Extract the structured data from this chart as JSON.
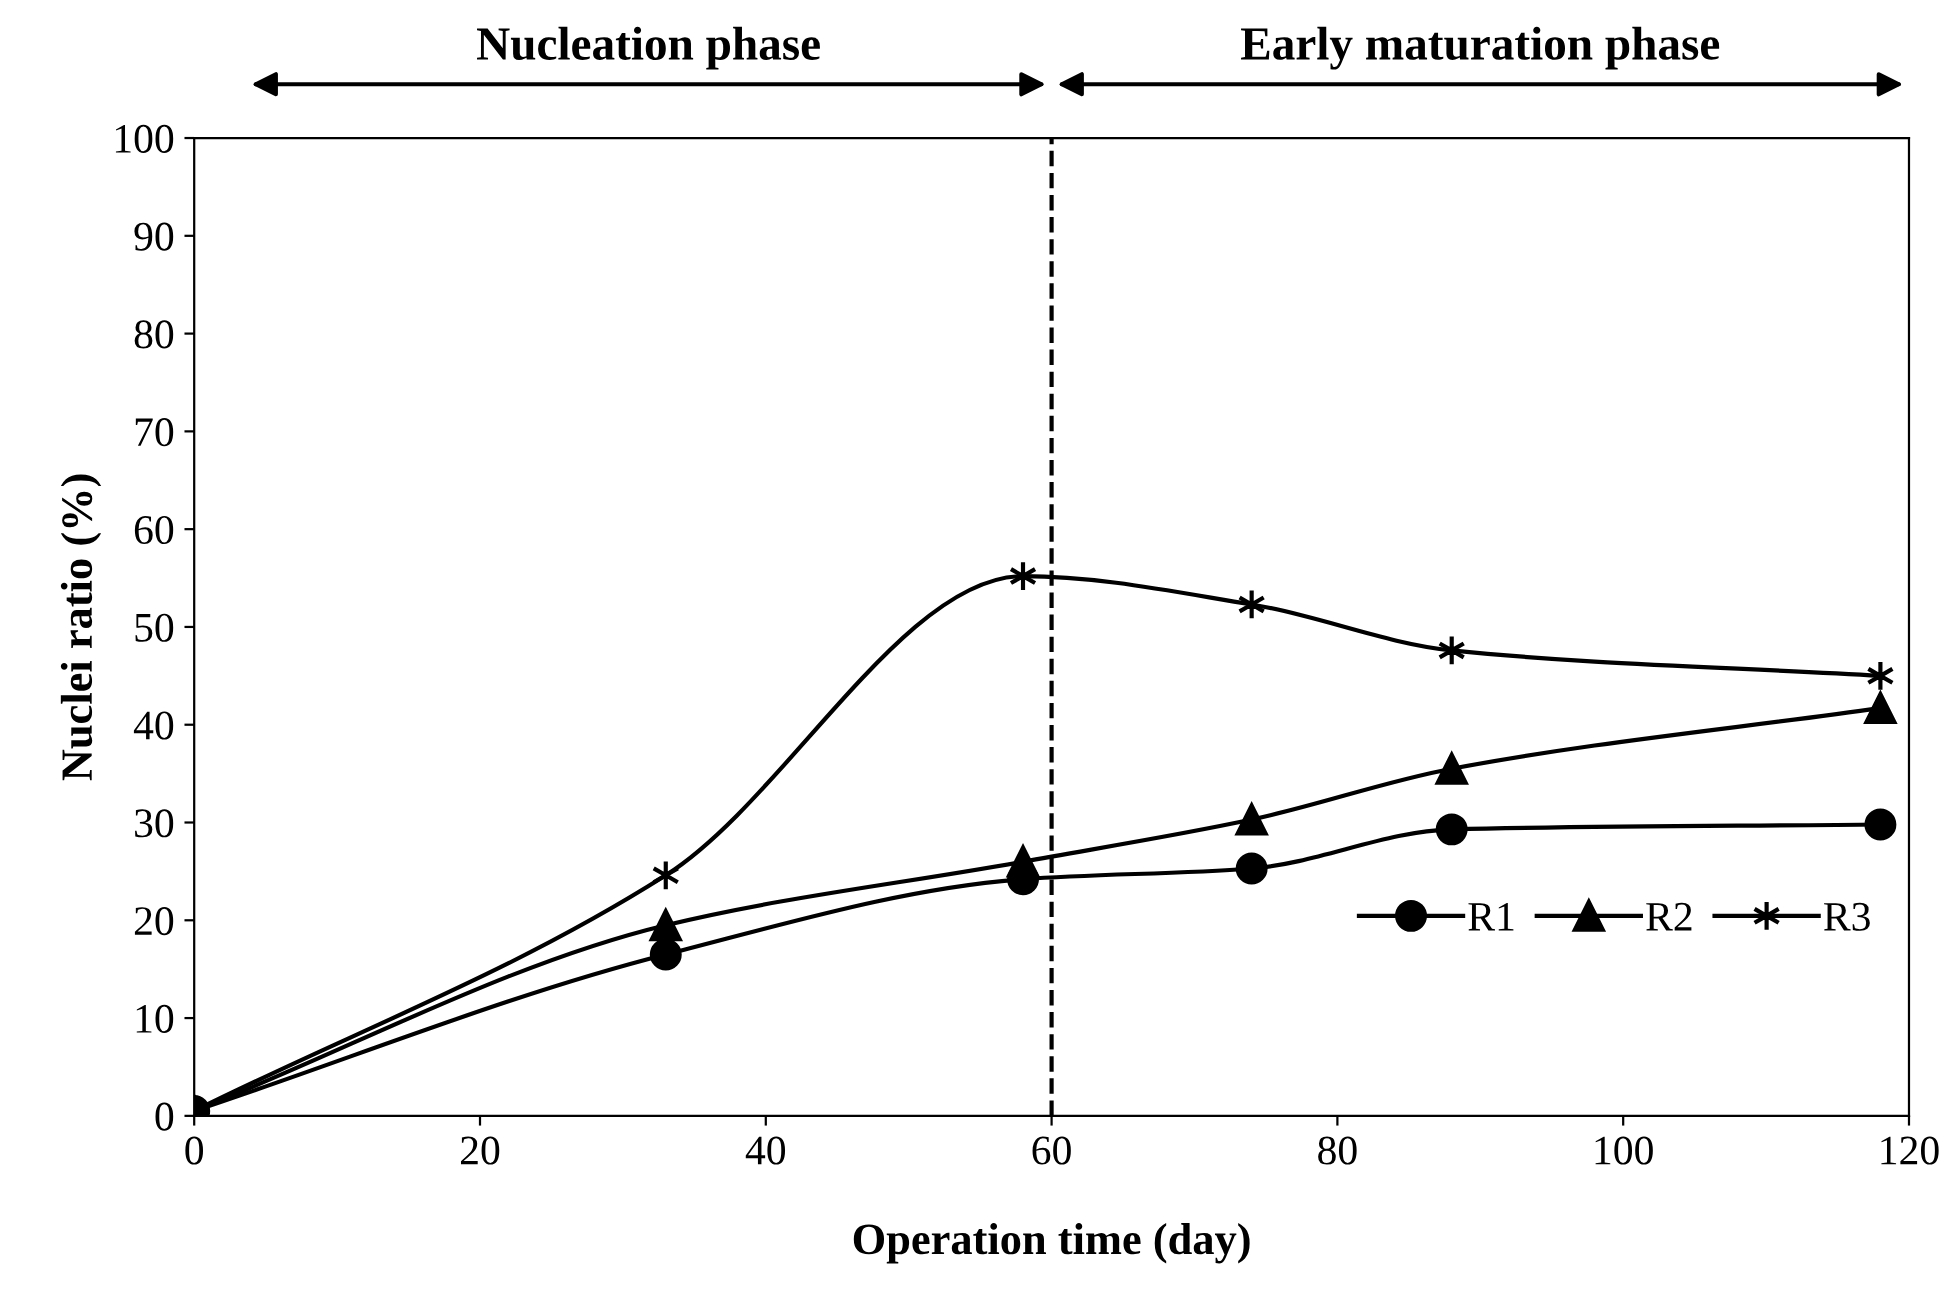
{
  "chart_data": {
    "type": "line",
    "xlabel": "Operation time (day)",
    "ylabel": "Nuclei ratio (%)",
    "x": [
      0,
      33,
      58,
      74,
      88,
      118
    ],
    "series": [
      {
        "name": "R1",
        "color": "#000000",
        "marker": "circle",
        "values": [
          0.5,
          16.5,
          24.2,
          25.3,
          29.3,
          29.8
        ]
      },
      {
        "name": "R2",
        "color": "#000000",
        "marker": "triangle",
        "values": [
          0.5,
          19.5,
          26.0,
          30.3,
          35.5,
          41.7
        ]
      },
      {
        "name": "R3",
        "color": "#000000",
        "marker": "cross",
        "values": [
          0.5,
          24.6,
          55.2,
          52.3,
          47.6,
          45.0
        ]
      }
    ],
    "xlim": [
      0,
      120
    ],
    "xticks": [
      0,
      20,
      40,
      60,
      80,
      100,
      120
    ],
    "ylim": [
      0,
      100
    ],
    "yticks": [
      0,
      10,
      20,
      30,
      40,
      50,
      60,
      70,
      80,
      90,
      100
    ],
    "ref_lines": [
      {
        "axis": "x",
        "value": 60,
        "line_style": "dashed",
        "color": "#000000"
      }
    ],
    "annotations": [
      "Nucleation phase",
      "Early maturation phase"
    ],
    "grid": false,
    "legend": "right",
    "line_style": "solid"
  }
}
